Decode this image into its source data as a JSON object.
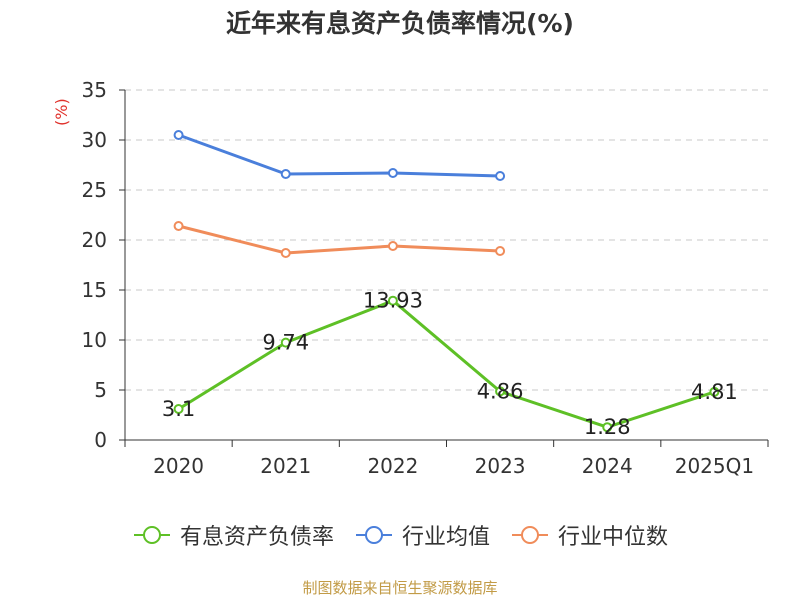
{
  "chart_data": {
    "type": "line",
    "title": "近年来有息资产负债率情况(%)",
    "unit_label": "(%)",
    "categories": [
      "2020",
      "2021",
      "2022",
      "2023",
      "2024",
      "2025Q1"
    ],
    "ylim": [
      0,
      35
    ],
    "yticks": [
      0,
      5,
      10,
      15,
      20,
      25,
      30,
      35
    ],
    "grid": true,
    "legend_position": "bottom",
    "series": [
      {
        "name": "有息资产负债率",
        "color": "#5ec026",
        "values": [
          3.1,
          9.74,
          13.93,
          4.86,
          1.28,
          4.81
        ],
        "data_labels": [
          "3.1",
          "9.74",
          "13.93",
          "4.86",
          "1.28",
          "4.81"
        ]
      },
      {
        "name": "行业均值",
        "color": "#4a7fdb",
        "values": [
          30.5,
          26.6,
          26.7,
          26.4,
          null,
          null
        ]
      },
      {
        "name": "行业中位数",
        "color": "#f08c5a",
        "values": [
          21.4,
          18.7,
          19.4,
          18.9,
          null,
          null
        ]
      }
    ]
  },
  "footer": {
    "source": "制图数据来自恒生聚源数据库"
  }
}
